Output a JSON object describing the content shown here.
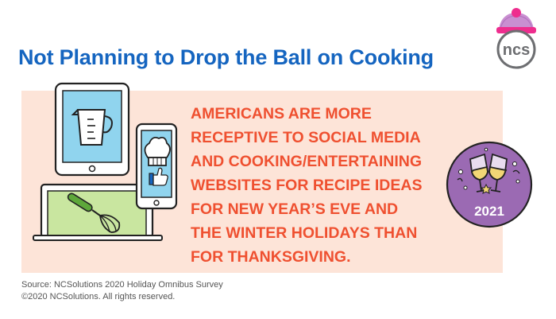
{
  "title": "Not Planning to Drop the Ball on Cooking",
  "headline_lines": [
    "AMERICANS ARE MORE",
    "RECEPTIVE TO SOCIAL MEDIA",
    "AND COOKING/ENTERTAINING",
    "WEBSITES FOR RECIPE IDEAS",
    "FOR NEW YEAR’S EVE AND",
    "THE WINTER HOLIDAYS THAN",
    "FOR THANKSGIVING."
  ],
  "badge": {
    "year": "2021",
    "icon": "champagne-glasses-icon"
  },
  "logo": {
    "text": "ncs",
    "icon": "winter-hat-icon"
  },
  "illustration": [
    "tablet-measuring-cup-icon",
    "smartphone-chef-hat-thumbs-up-icon",
    "laptop-whisk-icon"
  ],
  "footer": {
    "source": "Source: NCSolutions 2020 Holiday Omnibus Survey",
    "copyright": "©2020 NCSolutions. All rights reserved."
  },
  "colors": {
    "title": "#1565c0",
    "headline": "#ef5030",
    "panel": "#fde4d8",
    "badge": "#9b6ab3",
    "screen_blue": "#90d4ee",
    "screen_green": "#c9e6a0"
  }
}
